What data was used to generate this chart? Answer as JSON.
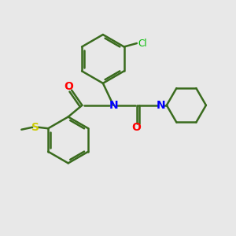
{
  "background_color": "#e8e8e8",
  "bond_color": "#3a6b1e",
  "N_color": "#0000ff",
  "O_color": "#ff0000",
  "S_color": "#cccc00",
  "Cl_color": "#00bb00",
  "line_width": 1.8,
  "figsize": [
    3.0,
    3.0
  ],
  "dpi": 100,
  "xlim": [
    0,
    10
  ],
  "ylim": [
    0,
    10
  ]
}
